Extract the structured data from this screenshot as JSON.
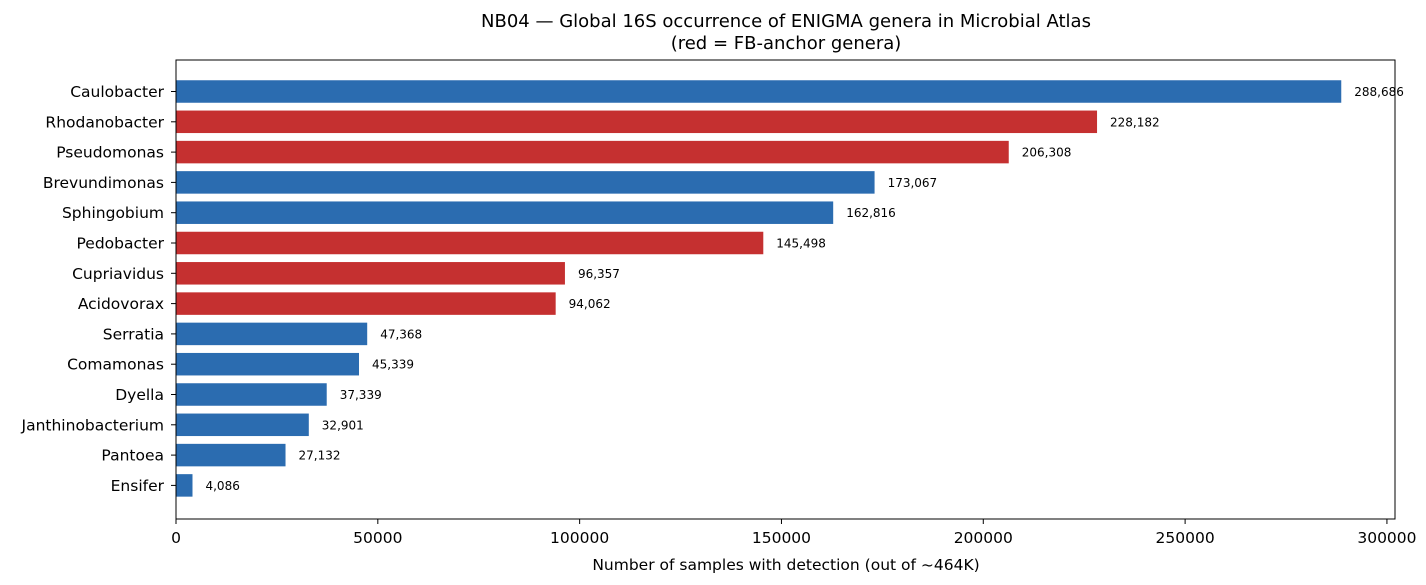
{
  "chart_data": {
    "type": "bar",
    "orientation": "horizontal",
    "title": "NB04 — Global 16S occurrence of ENIGMA genera in Microbial Atlas",
    "subtitle": "(red = FB-anchor genera)",
    "xlabel": "Number of samples with detection (out of ~464K)",
    "ylabel": "",
    "xlim": [
      0,
      302000
    ],
    "xticks": [
      0,
      50000,
      100000,
      150000,
      200000,
      250000,
      300000
    ],
    "xtick_labels": [
      "0",
      "50000",
      "100000",
      "150000",
      "200000",
      "250000",
      "300000"
    ],
    "grid": false,
    "colors": {
      "default": "#2b6cb0",
      "fb_anchor": "#c53030"
    },
    "categories": [
      "Caulobacter",
      "Rhodanobacter",
      "Pseudomonas",
      "Brevundimonas",
      "Sphingobium",
      "Pedobacter",
      "Cupriavidus",
      "Acidovorax",
      "Serratia",
      "Comamonas",
      "Dyella",
      "Janthinobacterium",
      "Pantoea",
      "Ensifer"
    ],
    "values": [
      288686,
      228182,
      206308,
      173067,
      162816,
      145498,
      96357,
      94062,
      47368,
      45339,
      37339,
      32901,
      27132,
      4086
    ],
    "value_labels": [
      "288,686",
      "228,182",
      "206,308",
      "173,067",
      "162,816",
      "145,498",
      "96,357",
      "94,062",
      "47,368",
      "45,339",
      "37,339",
      "32,901",
      "27,132",
      "4,086"
    ],
    "fb_anchor": [
      false,
      true,
      true,
      false,
      false,
      true,
      true,
      true,
      false,
      false,
      false,
      false,
      false,
      false
    ]
  }
}
